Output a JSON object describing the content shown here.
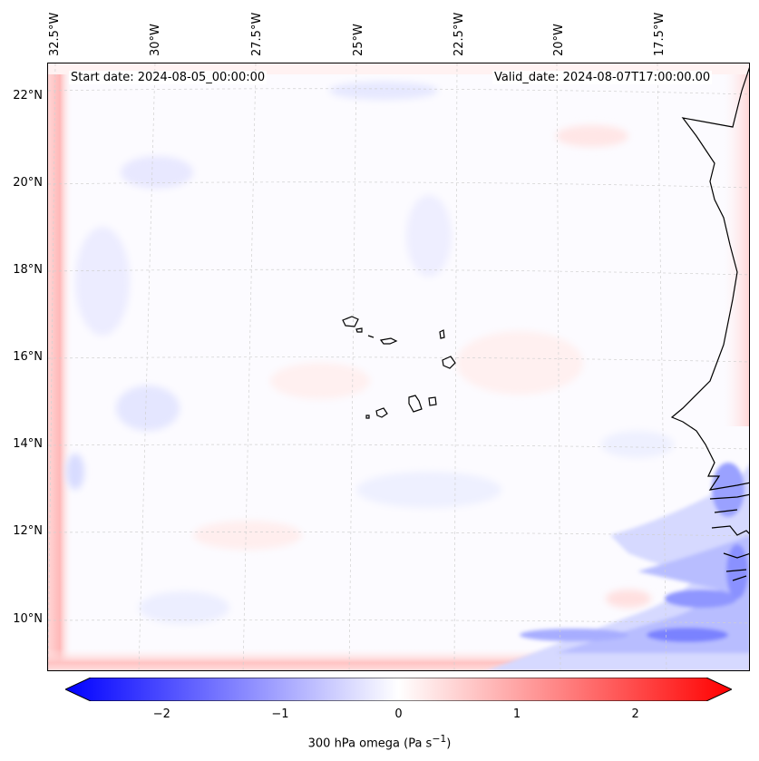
{
  "map": {
    "start_date": "Start date: 2024-08-05_00:00:00",
    "valid_date": "Valid_date: 2024-08-07T17:00:00.00",
    "lon_labels": [
      "32.5°W",
      "30°W",
      "27.5°W",
      "25°W",
      "22.5°W",
      "20°W",
      "17.5°W"
    ],
    "lat_labels": [
      "22°N",
      "20°N",
      "18°N",
      "16°N",
      "14°N",
      "12°N",
      "10°N"
    ],
    "colorbar": {
      "ticks": [
        "−2",
        "−1",
        "0",
        "1",
        "2"
      ],
      "title": "300 hPa omega (Pa s",
      "title_sup": "−1",
      "title_close": ")",
      "vmin": -2.6,
      "vmax": 2.6,
      "low_color": "#0000ff",
      "mid_color": "#ffffff",
      "high_color": "#ff0000"
    }
  }
}
